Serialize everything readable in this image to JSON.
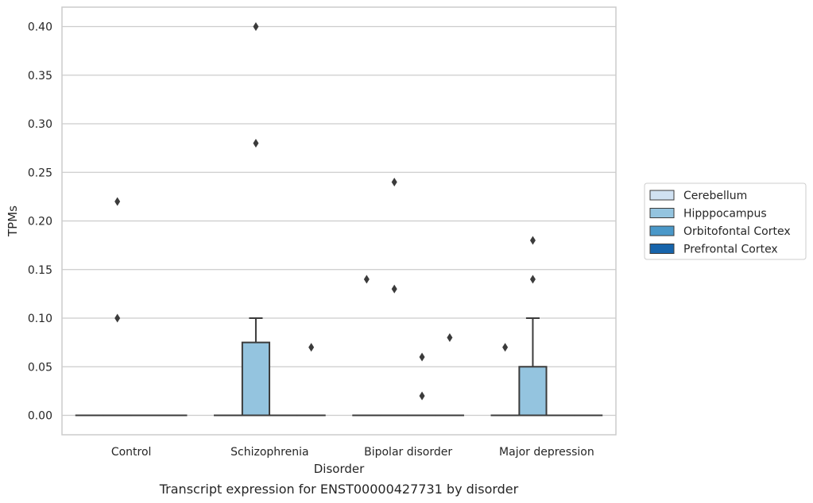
{
  "chart_data": {
    "type": "box",
    "title": "",
    "caption": "Transcript expression for ENST00000427731 by disorder",
    "xlabel": "Disorder",
    "ylabel": "TPMs",
    "ylim": [
      -0.02,
      0.42
    ],
    "yticks": [
      "0.00",
      "0.05",
      "0.10",
      "0.15",
      "0.20",
      "0.25",
      "0.30",
      "0.35",
      "0.40"
    ],
    "grid": true,
    "legend_position": "right",
    "categories": [
      "Control",
      "Schizophrenia",
      "Bipolar disorder",
      "Major depression"
    ],
    "series": [
      {
        "name": "Cerebellum",
        "color": "#d0e1f2"
      },
      {
        "name": "Hipppocampus",
        "color": "#94c4df"
      },
      {
        "name": "Orbitofontal Cortex",
        "color": "#4a98c9"
      },
      {
        "name": "Prefrontal Cortex",
        "color": "#1764ab"
      }
    ],
    "boxes": [
      {
        "category": "Control",
        "series": "Cerebellum",
        "q1": 0,
        "median": 0,
        "q3": 0,
        "whisker_low": 0,
        "whisker_high": 0,
        "outliers": []
      },
      {
        "category": "Control",
        "series": "Hipppocampus",
        "q1": 0,
        "median": 0,
        "q3": 0,
        "whisker_low": 0,
        "whisker_high": 0,
        "outliers": [
          0.22,
          0.1
        ]
      },
      {
        "category": "Control",
        "series": "Orbitofontal Cortex",
        "q1": 0,
        "median": 0,
        "q3": 0,
        "whisker_low": 0,
        "whisker_high": 0,
        "outliers": []
      },
      {
        "category": "Control",
        "series": "Prefrontal Cortex",
        "q1": 0,
        "median": 0,
        "q3": 0,
        "whisker_low": 0,
        "whisker_high": 0,
        "outliers": []
      },
      {
        "category": "Schizophrenia",
        "series": "Cerebellum",
        "q1": 0,
        "median": 0,
        "q3": 0,
        "whisker_low": 0,
        "whisker_high": 0,
        "outliers": []
      },
      {
        "category": "Schizophrenia",
        "series": "Hipppocampus",
        "q1": 0,
        "median": 0,
        "q3": 0.075,
        "whisker_low": 0,
        "whisker_high": 0.1,
        "outliers": [
          0.4,
          0.28
        ]
      },
      {
        "category": "Schizophrenia",
        "series": "Orbitofontal Cortex",
        "q1": 0,
        "median": 0,
        "q3": 0,
        "whisker_low": 0,
        "whisker_high": 0,
        "outliers": []
      },
      {
        "category": "Schizophrenia",
        "series": "Prefrontal Cortex",
        "q1": 0,
        "median": 0,
        "q3": 0,
        "whisker_low": 0,
        "whisker_high": 0,
        "outliers": [
          0.07
        ]
      },
      {
        "category": "Bipolar disorder",
        "series": "Cerebellum",
        "q1": 0,
        "median": 0,
        "q3": 0,
        "whisker_low": 0,
        "whisker_high": 0,
        "outliers": [
          0.14
        ]
      },
      {
        "category": "Bipolar disorder",
        "series": "Hipppocampus",
        "q1": 0,
        "median": 0,
        "q3": 0,
        "whisker_low": 0,
        "whisker_high": 0,
        "outliers": [
          0.24,
          0.13
        ]
      },
      {
        "category": "Bipolar disorder",
        "series": "Orbitofontal Cortex",
        "q1": 0,
        "median": 0,
        "q3": 0,
        "whisker_low": 0,
        "whisker_high": 0,
        "outliers": [
          0.06,
          0.02
        ]
      },
      {
        "category": "Bipolar disorder",
        "series": "Prefrontal Cortex",
        "q1": 0,
        "median": 0,
        "q3": 0,
        "whisker_low": 0,
        "whisker_high": 0,
        "outliers": [
          0.08
        ]
      },
      {
        "category": "Major depression",
        "series": "Cerebellum",
        "q1": 0,
        "median": 0,
        "q3": 0,
        "whisker_low": 0,
        "whisker_high": 0,
        "outliers": [
          0.07
        ]
      },
      {
        "category": "Major depression",
        "series": "Hipppocampus",
        "q1": 0,
        "median": 0,
        "q3": 0.05,
        "whisker_low": 0,
        "whisker_high": 0.1,
        "outliers": [
          0.18,
          0.14
        ]
      },
      {
        "category": "Major depression",
        "series": "Orbitofontal Cortex",
        "q1": 0,
        "median": 0,
        "q3": 0,
        "whisker_low": 0,
        "whisker_high": 0,
        "outliers": []
      },
      {
        "category": "Major depression",
        "series": "Prefrontal Cortex",
        "q1": 0,
        "median": 0,
        "q3": 0,
        "whisker_low": 0,
        "whisker_high": 0,
        "outliers": []
      }
    ]
  }
}
